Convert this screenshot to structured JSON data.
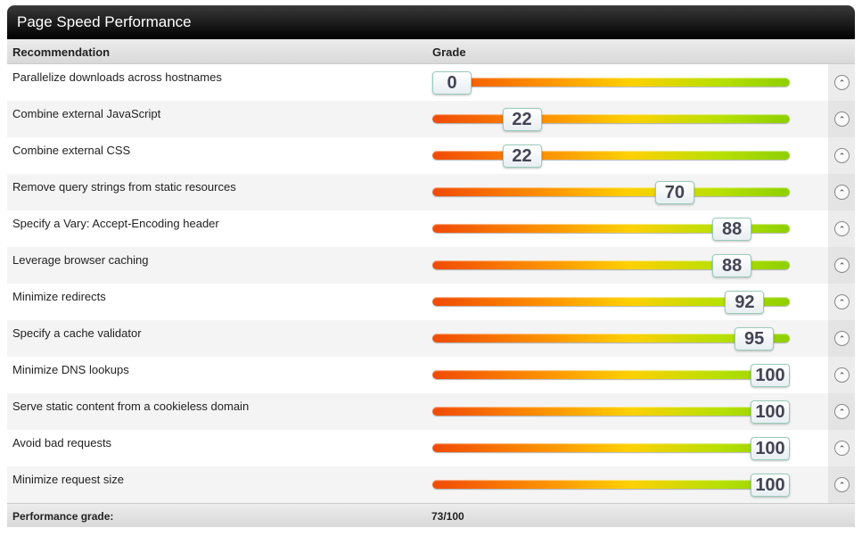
{
  "title": "Page Speed Performance",
  "header": {
    "recommendation": "Recommendation",
    "grade": "Grade"
  },
  "rows": [
    {
      "label": "Parallelize downloads across hostnames",
      "grade": 0
    },
    {
      "label": "Combine external JavaScript",
      "grade": 22
    },
    {
      "label": "Combine external CSS",
      "grade": 22
    },
    {
      "label": "Remove query strings from static resources",
      "grade": 70
    },
    {
      "label": "Specify a Vary: Accept-Encoding header",
      "grade": 88
    },
    {
      "label": "Leverage browser caching",
      "grade": 88
    },
    {
      "label": "Minimize redirects",
      "grade": 92
    },
    {
      "label": "Specify a cache validator",
      "grade": 95
    },
    {
      "label": "Minimize DNS lookups",
      "grade": 100
    },
    {
      "label": "Serve static content from a cookieless domain",
      "grade": 100
    },
    {
      "label": "Avoid bad requests",
      "grade": 100
    },
    {
      "label": "Minimize request size",
      "grade": 100
    }
  ],
  "footer": {
    "label": "Performance grade:",
    "value": "73/100"
  },
  "expand_icon": "chevron-up-circle-icon"
}
